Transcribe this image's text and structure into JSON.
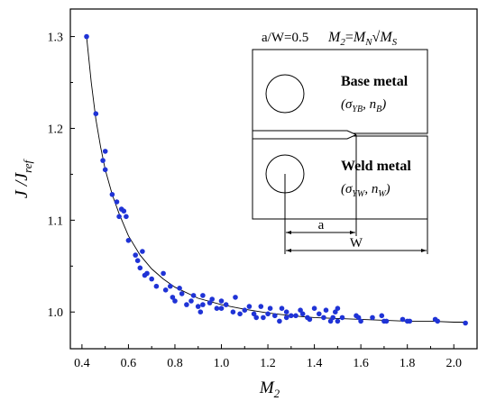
{
  "chart_data": {
    "type": "scatter",
    "xlabel_main": "M",
    "xlabel_sub": "2",
    "ylabel_main": "J /J",
    "ylabel_sub": "ref",
    "xlim": [
      0.35,
      2.1
    ],
    "ylim": [
      0.96,
      1.33
    ],
    "xticks": [
      0.4,
      0.6,
      0.8,
      1.0,
      1.2,
      1.4,
      1.6,
      1.8,
      2.0
    ],
    "xtick_labels": [
      "0.4",
      "0.6",
      "0.8",
      "1.0",
      "1.2",
      "1.4",
      "1.6",
      "1.8",
      "2.0"
    ],
    "yticks": [
      1.0,
      1.1,
      1.2,
      1.3
    ],
    "ytick_labels": [
      "1.0",
      "1.1",
      "1.2",
      "1.3"
    ],
    "colors": {
      "points": "#1f33d6",
      "line": "#000000"
    },
    "points": {
      "x": [
        0.42,
        0.46,
        0.49,
        0.5,
        0.5,
        0.53,
        0.55,
        0.56,
        0.57,
        0.58,
        0.59,
        0.6,
        0.63,
        0.64,
        0.65,
        0.66,
        0.67,
        0.68,
        0.7,
        0.72,
        0.75,
        0.76,
        0.78,
        0.79,
        0.8,
        0.82,
        0.83,
        0.85,
        0.87,
        0.88,
        0.9,
        0.91,
        0.92,
        0.92,
        0.95,
        0.96,
        0.98,
        1.0,
        1.0,
        1.02,
        1.05,
        1.06,
        1.08,
        1.1,
        1.12,
        1.14,
        1.15,
        1.17,
        1.18,
        1.2,
        1.21,
        1.23,
        1.25,
        1.26,
        1.28,
        1.28,
        1.3,
        1.32,
        1.34,
        1.35,
        1.37,
        1.38,
        1.4,
        1.42,
        1.44,
        1.45,
        1.47,
        1.48,
        1.49,
        1.5,
        1.5,
        1.52,
        1.58,
        1.59,
        1.6,
        1.65,
        1.69,
        1.7,
        1.71,
        1.78,
        1.8,
        1.81,
        1.92,
        1.93,
        2.05
      ],
      "y": [
        1.3,
        1.216,
        1.165,
        1.175,
        1.155,
        1.128,
        1.12,
        1.104,
        1.112,
        1.11,
        1.104,
        1.078,
        1.062,
        1.056,
        1.048,
        1.066,
        1.04,
        1.042,
        1.036,
        1.028,
        1.042,
        1.024,
        1.028,
        1.016,
        1.012,
        1.026,
        1.02,
        1.008,
        1.012,
        1.018,
        1.006,
        1.0,
        1.008,
        1.018,
        1.01,
        1.014,
        1.004,
        1.004,
        1.012,
        1.008,
        1.0,
        1.016,
        0.998,
        1.002,
        1.006,
        0.998,
        0.994,
        1.006,
        0.994,
        0.998,
        1.004,
        0.996,
        0.99,
        1.004,
        0.994,
        1.0,
        0.996,
        0.996,
        1.002,
        0.998,
        0.994,
        0.992,
        1.004,
        0.998,
        0.994,
        1.002,
        0.99,
        0.994,
        1.0,
        0.99,
        1.004,
        0.994,
        0.996,
        0.994,
        0.99,
        0.994,
        0.996,
        0.99,
        0.99,
        0.992,
        0.99,
        0.99,
        0.992,
        0.99,
        0.988
      ]
    },
    "fit": {
      "x": [
        0.42,
        0.44,
        0.46,
        0.48,
        0.5,
        0.53,
        0.56,
        0.6,
        0.65,
        0.7,
        0.75,
        0.8,
        0.9,
        1.0,
        1.1,
        1.2,
        1.3,
        1.4,
        1.5,
        1.6,
        1.7,
        1.8,
        1.9,
        2.0,
        2.05
      ],
      "y": [
        1.3,
        1.25,
        1.21,
        1.18,
        1.155,
        1.128,
        1.107,
        1.083,
        1.062,
        1.047,
        1.036,
        1.027,
        1.015,
        1.008,
        1.003,
        0.999,
        0.996,
        0.994,
        0.993,
        0.992,
        0.991,
        0.99,
        0.99,
        0.989,
        0.989
      ]
    },
    "annotations": {
      "inset_title": "a/W=0.5",
      "formula_lhs_main": "M",
      "formula_lhs_sub": "2",
      "formula_eq": "=",
      "formula_m": "M",
      "formula_n_sub": "N",
      "formula_root": "√",
      "formula_s_sub": "S",
      "base_metal": "Base metal",
      "base_open": "(σ",
      "base_sub1": "YB",
      "base_mid": ", n",
      "base_sub2": "B",
      "base_close": ")",
      "weld_metal": "Weld metal",
      "weld_open": "(σ",
      "weld_sub1": "YW",
      "weld_mid": ", n",
      "weld_sub2": "W",
      "weld_close": ")",
      "dim_a": "a",
      "dim_w": "W"
    }
  }
}
